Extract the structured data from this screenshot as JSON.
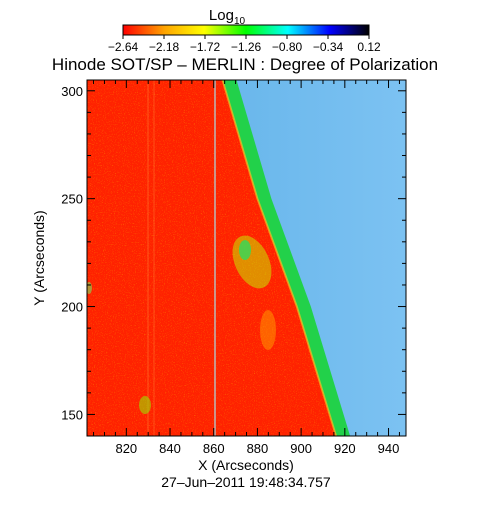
{
  "chart_data": {
    "type": "heatmap",
    "title": "Hinode SOT/SP – MERLIN : Degree of Polarization",
    "xlabel": "X (Arcseconds)",
    "ylabel": "Y (Arcseconds)",
    "xlim": [
      802,
      948
    ],
    "ylim": [
      140,
      305
    ],
    "xticks": [
      820,
      840,
      860,
      880,
      900,
      920,
      940
    ],
    "yticks": [
      150,
      200,
      250,
      300
    ],
    "colorbar": {
      "label_base": "Log",
      "label_sub": "10",
      "ticks": [
        "−2.64",
        "−2.18",
        "−1.72",
        "−1.26",
        "−0.80",
        "−0.34",
        "0.12"
      ],
      "range": [
        -2.64,
        0.12
      ],
      "colors": [
        "#ff0000",
        "#ffa500",
        "#ffff00",
        "#00ff00",
        "#00ffff",
        "#0000ff",
        "#000000"
      ]
    },
    "limb": {
      "description_values": "solar limb boundary (x at given y)",
      "points": [
        {
          "y": 305,
          "x": 864
        },
        {
          "y": 250,
          "x": 880
        },
        {
          "y": 200,
          "x": 898
        },
        {
          "y": 140,
          "x": 916
        }
      ],
      "disk_log_value": -2.64,
      "band_log_value": -1.26,
      "offlimb_log_value": -0.8
    },
    "grid": false
  },
  "footer": {
    "timestamp": "27–Jun–2011 19:48:34.757"
  }
}
